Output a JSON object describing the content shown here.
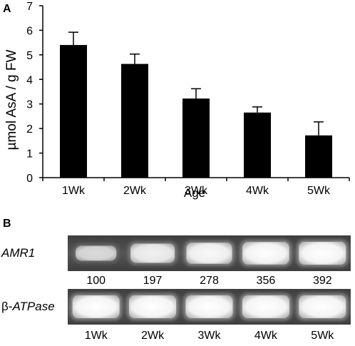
{
  "panel_a": {
    "label": "A"
  },
  "panel_b": {
    "label": "B"
  },
  "chart_data": {
    "type": "bar",
    "xlabel": "Age",
    "ylabel": "µmol AsA / g FW",
    "ylim": [
      0,
      7
    ],
    "yticks": [
      0,
      1,
      2,
      3,
      4,
      5,
      6,
      7
    ],
    "categories": [
      "1Wk",
      "2Wk",
      "3Wk",
      "4Wk",
      "5Wk"
    ],
    "values": [
      5.4,
      4.63,
      3.22,
      2.65,
      1.72
    ],
    "errors": [
      0.52,
      0.4,
      0.4,
      0.23,
      0.55
    ],
    "bar_color": "#000000",
    "grid": false
  },
  "gel": {
    "rows": [
      {
        "label": "AMR1",
        "values": [
          "100",
          "197",
          "278",
          "356",
          "392"
        ],
        "intensity": [
          0.45,
          0.75,
          0.88,
          0.97,
          1.0
        ]
      },
      {
        "label_prefix": "β-",
        "label": "ATPase",
        "intensity": [
          1.0,
          1.0,
          1.0,
          1.0,
          1.0
        ]
      }
    ],
    "lanes": [
      "1Wk",
      "2Wk",
      "3Wk",
      "4Wk",
      "5Wk"
    ],
    "background": "#4a4a4a",
    "band_color": "#ffffff"
  }
}
